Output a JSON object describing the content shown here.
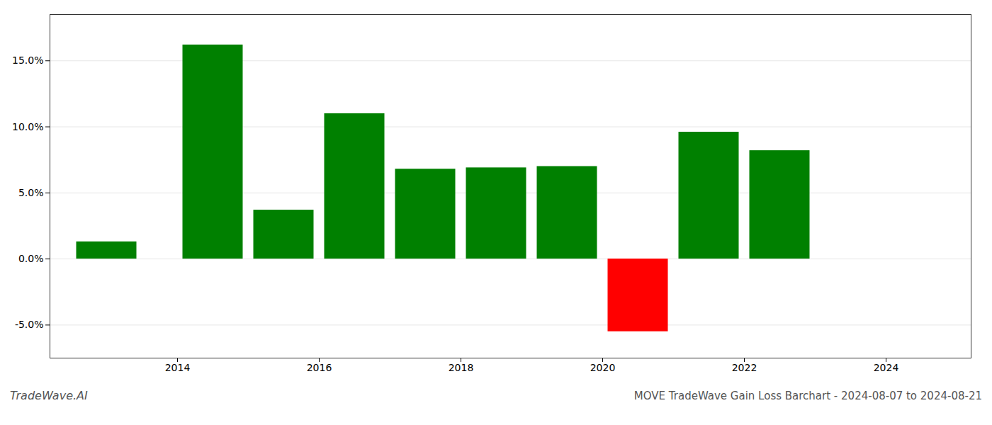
{
  "chart_data": {
    "type": "bar",
    "title": "MOVE TradeWave Gain Loss Barchart - 2024-08-07 to 2024-08-21",
    "annotations": [
      "TradeWave.AI"
    ],
    "x": [
      2013.0,
      2014.5,
      2015.5,
      2016.5,
      2017.5,
      2018.5,
      2019.5,
      2020.5,
      2021.5,
      2022.5
    ],
    "values": [
      1.3,
      16.2,
      3.7,
      11.0,
      6.8,
      6.9,
      7.0,
      -5.5,
      9.6,
      8.2
    ],
    "colors": [
      "#008000",
      "#008000",
      "#008000",
      "#008000",
      "#008000",
      "#008000",
      "#008000",
      "#ff0000",
      "#008000",
      "#008000"
    ],
    "xlim": [
      2012.2,
      2025.2
    ],
    "xticks": [
      2014,
      2016,
      2018,
      2020,
      2022,
      2024
    ],
    "ylim": [
      -7.5,
      18.5
    ],
    "yticks": [
      {
        "value": -5.0,
        "label": "-5.0%"
      },
      {
        "value": 0.0,
        "label": "0.0%"
      },
      {
        "value": 5.0,
        "label": "5.0%"
      },
      {
        "value": 10.0,
        "label": "10.0%"
      },
      {
        "value": 15.0,
        "label": "15.0%"
      }
    ],
    "grid": true
  }
}
